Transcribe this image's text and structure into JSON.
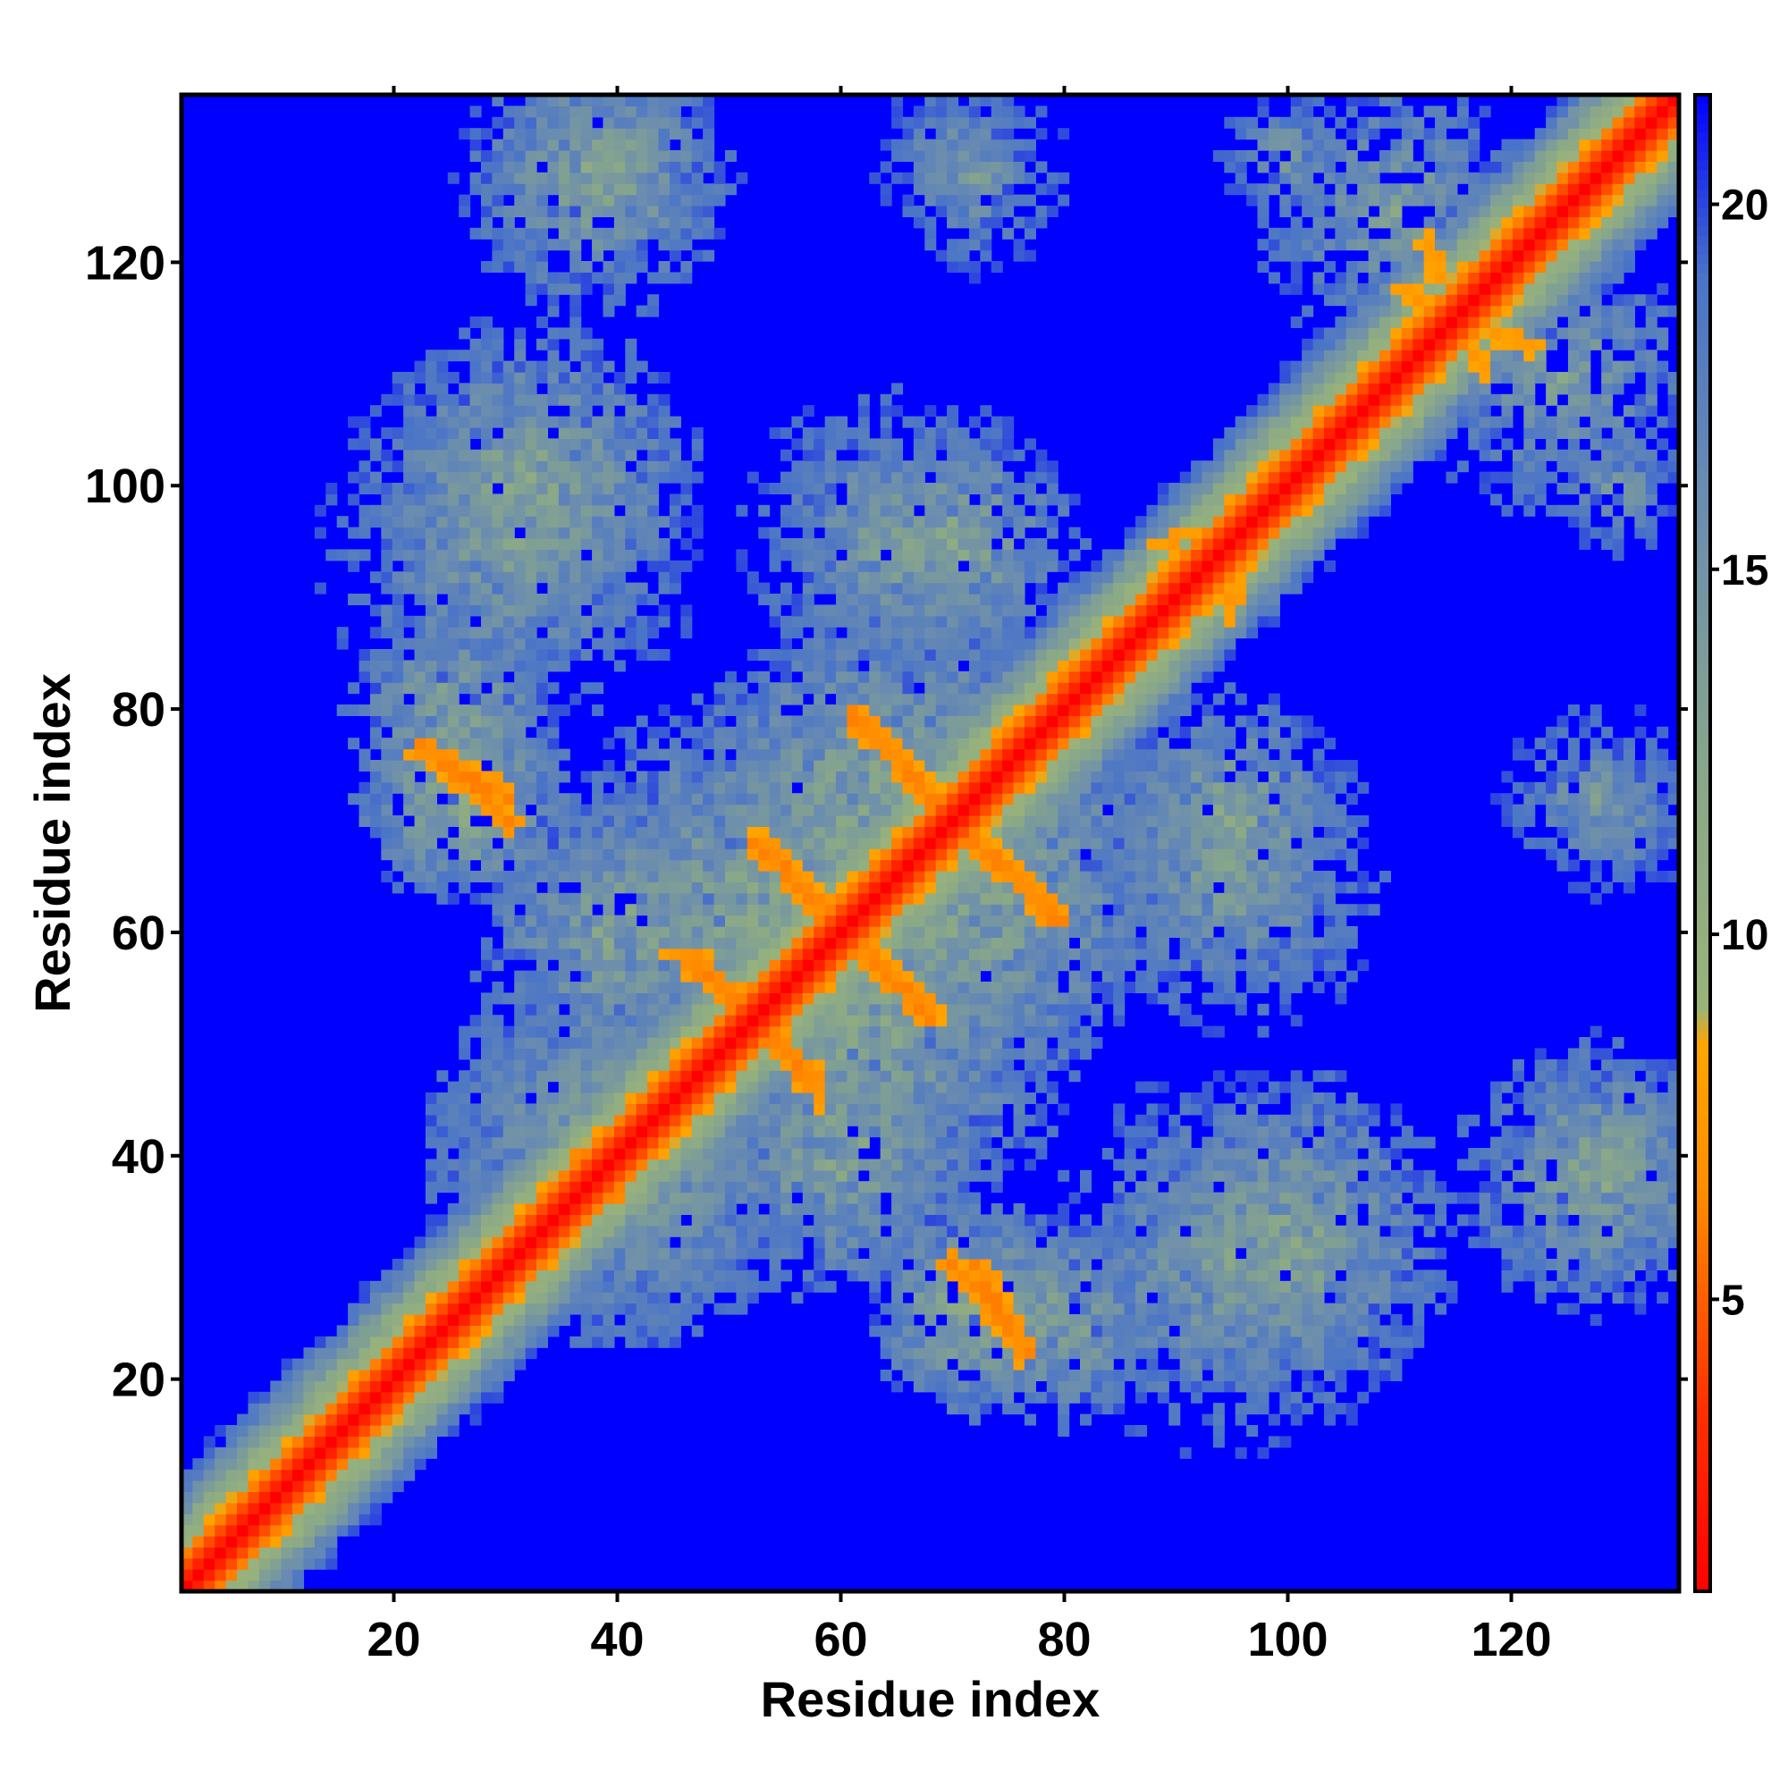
{
  "chart_data": {
    "type": "heatmap",
    "title": "",
    "xlabel": "Residue index",
    "ylabel": "Residue index",
    "n_residues": 135,
    "xlim": [
      1,
      135
    ],
    "ylim": [
      1,
      135
    ],
    "x_ticks": [
      20,
      40,
      60,
      80,
      100,
      120
    ],
    "y_ticks": [
      20,
      40,
      60,
      80,
      100,
      120
    ],
    "colorbar": {
      "ticks": [
        5,
        10,
        15,
        20
      ],
      "range": [
        1,
        21.5
      ],
      "stops": [
        {
          "value": 1.0,
          "color": "#ff0000"
        },
        {
          "value": 3.5,
          "color": "#ff3000"
        },
        {
          "value": 6.5,
          "color": "#ff8c00"
        },
        {
          "value": 8.5,
          "color": "#ffa500"
        },
        {
          "value": 9.0,
          "color": "#9ab37a"
        },
        {
          "value": 12.0,
          "color": "#8aa888"
        },
        {
          "value": 16.0,
          "color": "#6a8cb0"
        },
        {
          "value": 19.0,
          "color": "#4a74c8"
        },
        {
          "value": 21.5,
          "color": "#0000ff"
        }
      ]
    },
    "cutoff": 20,
    "background_color": "#0000ff",
    "diagonal_band": {
      "description_value": "distance grows with |i-j|",
      "slope": 1.7
    },
    "contact_regions": [
      {
        "center": [
          26,
          72
        ],
        "radius": 10,
        "value": 11
      },
      {
        "center": [
          32,
          100
        ],
        "radius": 16,
        "value": 12
      },
      {
        "center": [
          38,
          128
        ],
        "radius": 13,
        "value": 12
      },
      {
        "center": [
          72,
          128
        ],
        "radius": 10,
        "value": 14
      },
      {
        "center": [
          70,
          95
        ],
        "radius": 12,
        "value": 12
      },
      {
        "center": [
          70,
          65
        ],
        "radius": 20,
        "value": 11
      },
      {
        "center": [
          52,
          62
        ],
        "radius": 20,
        "value": 12
      },
      {
        "center": [
          40,
          40
        ],
        "radius": 18,
        "value": 12
      },
      {
        "center": [
          60,
          40
        ],
        "radius": 14,
        "value": 12
      },
      {
        "center": [
          95,
          30
        ],
        "radius": 18,
        "value": 13
      },
      {
        "center": [
          95,
          65
        ],
        "radius": 15,
        "value": 13
      },
      {
        "center": [
          130,
          40
        ],
        "radius": 10,
        "value": 13
      },
      {
        "center": [
          130,
          70
        ],
        "radius": 8,
        "value": 14
      },
      {
        "center": [
          130,
          100
        ],
        "radius": 7,
        "value": 14
      },
      {
        "center": [
          110,
          125
        ],
        "radius": 14,
        "value": 13
      },
      {
        "center": [
          80,
          25
        ],
        "radius": 10,
        "value": 12
      }
    ],
    "strong_contacts": [
      {
        "from": [
          22,
          77
        ],
        "to": [
          30,
          70
        ],
        "value": 6
      },
      {
        "from": [
          61,
          80
        ],
        "to": [
          68,
          72
        ],
        "value": 6
      },
      {
        "from": [
          72,
          68
        ],
        "to": [
          79,
          61
        ],
        "value": 6
      },
      {
        "from": [
          52,
          68
        ],
        "to": [
          58,
          62
        ],
        "value": 6
      },
      {
        "from": [
          62,
          58
        ],
        "to": [
          68,
          52
        ],
        "value": 6
      },
      {
        "from": [
          46,
          58
        ],
        "to": [
          50,
          54
        ],
        "value": 6
      },
      {
        "from": [
          54,
          50
        ],
        "to": [
          58,
          45
        ],
        "value": 6
      },
      {
        "from": [
          72,
          30
        ],
        "to": [
          76,
          22
        ],
        "value": 6
      },
      {
        "from": [
          88,
          95
        ],
        "to": [
          100,
          98
        ],
        "value": 7
      },
      {
        "from": [
          110,
          118
        ],
        "to": [
          122,
          113
        ],
        "value": 7
      },
      {
        "from": [
          36,
          40
        ],
        "to": [
          40,
          36
        ],
        "value": 6
      }
    ]
  }
}
